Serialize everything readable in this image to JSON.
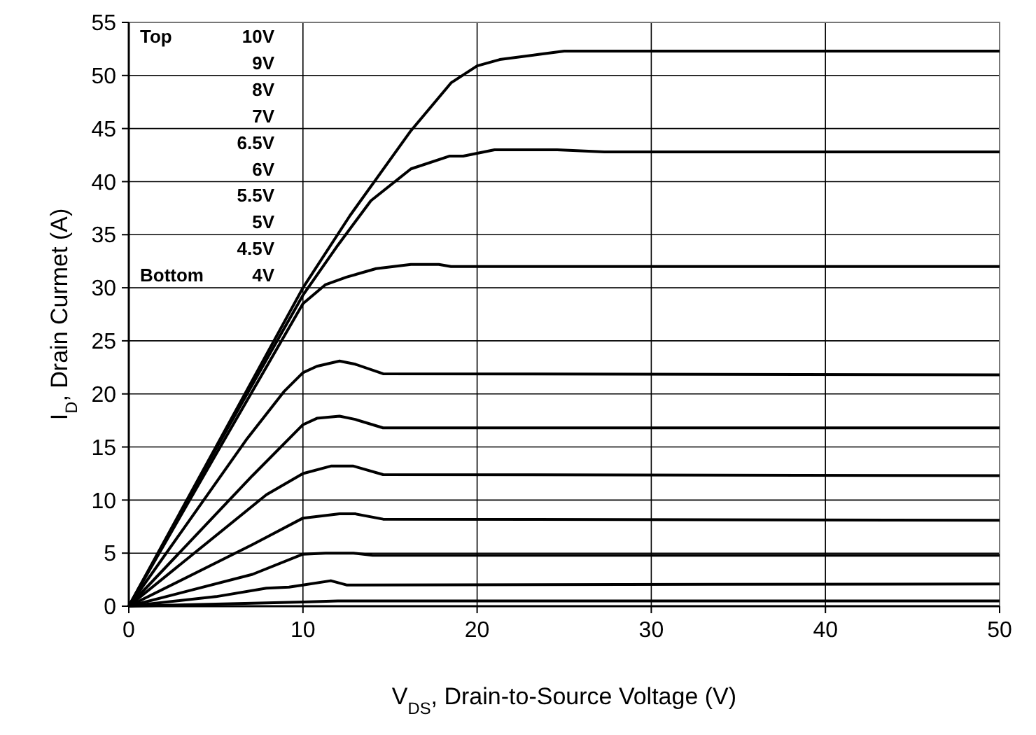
{
  "chart_data": {
    "type": "line",
    "xlabel": "V$_{DS}$, Drain-to-Source Voltage (V)",
    "ylabel": "I$_{D}$, Drain Curmet (A)",
    "xlim": [
      0,
      50
    ],
    "xticks": [
      0,
      10,
      20,
      30,
      40,
      50
    ],
    "ylim": [
      0,
      55
    ],
    "yticks": [
      0,
      5,
      10,
      15,
      20,
      25,
      30,
      35,
      40,
      45,
      50,
      55
    ],
    "grid": true,
    "marker": "none",
    "line_style": "solid",
    "annotations": [
      "Top",
      "Bottom",
      "10V",
      "9V",
      "8V",
      "7V",
      "6.5V",
      "6V",
      "5.5V",
      "5V",
      "4.5V",
      "4V"
    ],
    "series": [
      {
        "color": "#000000",
        "x": [
          0,
          5,
          10,
          12.7,
          16.2,
          18.5,
          20,
          21.3,
          23.6,
          25,
          50
        ],
        "values": [
          0,
          15,
          30,
          36.8,
          44.8,
          49.3,
          50.9,
          51.5,
          52,
          52.3,
          52.3
        ]
      },
      {
        "color": "#000000",
        "x": [
          0,
          5,
          10,
          12,
          13.9,
          16.2,
          18.4,
          19.2,
          21,
          24.6,
          27.3,
          50
        ],
        "values": [
          0,
          14.8,
          29.3,
          34,
          38.2,
          41.2,
          42.4,
          42.4,
          43,
          43,
          42.8,
          42.8
        ]
      },
      {
        "color": "#000000",
        "x": [
          0,
          5,
          10,
          11.3,
          12.5,
          14.2,
          16.2,
          17.8,
          18.5,
          50
        ],
        "values": [
          0,
          14.3,
          28.5,
          30.3,
          31,
          31.8,
          32.2,
          32.2,
          32,
          32
        ]
      },
      {
        "color": "#000000",
        "x": [
          0,
          6.8,
          8.9,
          10,
          10.8,
          12.1,
          13,
          14.6,
          50
        ],
        "values": [
          0,
          15.8,
          20.2,
          22,
          22.6,
          23.1,
          22.8,
          21.9,
          21.8
        ]
      },
      {
        "color": "#000000",
        "x": [
          0,
          7.1,
          10,
          10.8,
          12.1,
          13,
          14.6,
          50
        ],
        "values": [
          0,
          12.3,
          17.1,
          17.7,
          17.9,
          17.6,
          16.8,
          16.8
        ]
      },
      {
        "color": "#000000",
        "x": [
          0,
          7.9,
          10,
          11.6,
          12.9,
          14.6,
          50
        ],
        "values": [
          0,
          10.5,
          12.5,
          13.2,
          13.2,
          12.4,
          12.3
        ]
      },
      {
        "color": "#000000",
        "x": [
          0,
          7.1,
          10,
          12.1,
          13,
          14.6,
          50
        ],
        "values": [
          0,
          5.8,
          8.3,
          8.7,
          8.7,
          8.2,
          8.1
        ]
      },
      {
        "color": "#000000",
        "x": [
          0,
          7.1,
          10,
          11.3,
          12.9,
          14,
          50
        ],
        "values": [
          0,
          3,
          4.9,
          5,
          5,
          4.8,
          4.8
        ]
      },
      {
        "color": "#000000",
        "x": [
          0,
          5,
          7.9,
          9.2,
          10,
          11.6,
          12.5,
          50
        ],
        "values": [
          0,
          0.9,
          1.7,
          1.8,
          2,
          2.4,
          2,
          2.1
        ]
      },
      {
        "color": "#000000",
        "x": [
          0,
          5,
          10,
          12,
          50
        ],
        "values": [
          0,
          0.2,
          0.4,
          0.5,
          0.5
        ]
      }
    ]
  }
}
